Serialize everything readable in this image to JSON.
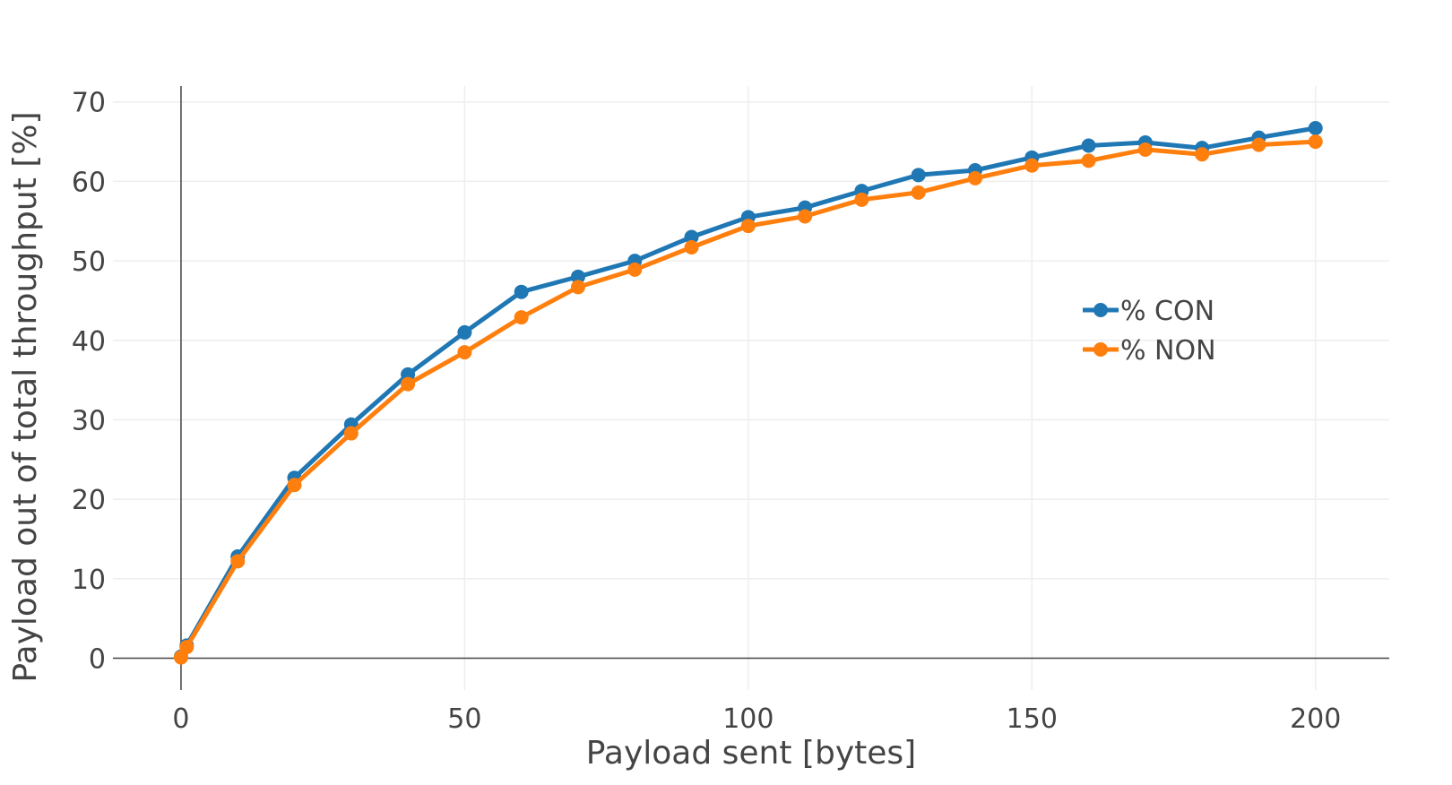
{
  "chart_data": {
    "type": "line",
    "xlabel": "Payload sent  [bytes]",
    "ylabel": "Payload out of total throughput [%]",
    "xlim": [
      -12,
      213
    ],
    "ylim": [
      -4,
      72
    ],
    "x_ticks": [
      0,
      50,
      100,
      150,
      200
    ],
    "y_ticks": [
      0,
      10,
      20,
      30,
      40,
      50,
      60,
      70
    ],
    "grid": true,
    "legend_position": "right, upper-middle",
    "series": [
      {
        "name": "% CON",
        "color": "#1f77b4",
        "x": [
          0,
          1,
          10,
          20,
          30,
          40,
          50,
          60,
          70,
          80,
          90,
          100,
          110,
          120,
          130,
          140,
          150,
          160,
          170,
          180,
          190,
          200
        ],
        "y": [
          0.2,
          1.6,
          12.8,
          22.7,
          29.4,
          35.7,
          41.0,
          46.1,
          48.0,
          50.0,
          53.0,
          55.5,
          56.7,
          58.8,
          60.8,
          61.4,
          63.0,
          64.5,
          64.9,
          64.2,
          65.5,
          66.7
        ]
      },
      {
        "name": "% NON",
        "color": "#ff7f0e",
        "x": [
          0,
          1,
          10,
          20,
          30,
          40,
          50,
          60,
          70,
          80,
          90,
          100,
          110,
          120,
          130,
          140,
          150,
          160,
          170,
          180,
          190,
          200
        ],
        "y": [
          0.1,
          1.4,
          12.2,
          21.8,
          28.3,
          34.5,
          38.5,
          42.9,
          46.7,
          48.9,
          51.7,
          54.4,
          55.6,
          57.7,
          58.6,
          60.4,
          62.0,
          62.6,
          64.0,
          63.4,
          64.6,
          65.0
        ]
      }
    ]
  }
}
